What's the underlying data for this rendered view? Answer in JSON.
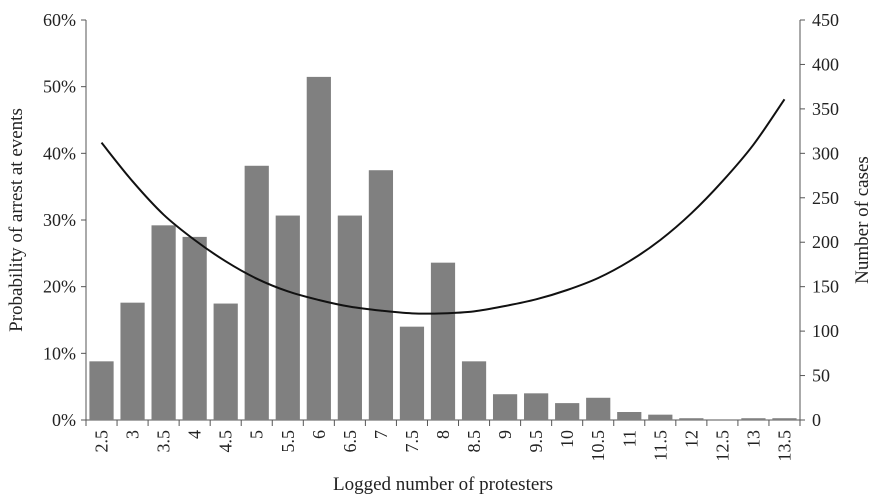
{
  "chart_data": {
    "type": "bar",
    "xlabel": "Logged number of protesters",
    "ylabel_left": "Probability of arrest at events",
    "ylabel_right": "Number of cases",
    "categories": [
      "2.5",
      "3",
      "3.5",
      "4",
      "4.5",
      "5",
      "5.5",
      "6",
      "6.5",
      "7",
      "7.5",
      "8",
      "8.5",
      "9",
      "9.5",
      "10",
      "10.5",
      "11",
      "11.5",
      "12",
      "12.5",
      "13",
      "13.5"
    ],
    "left_ticks": [
      "0%",
      "10%",
      "20%",
      "30%",
      "40%",
      "50%",
      "60%"
    ],
    "right_ticks": [
      "0",
      "50",
      "100",
      "150",
      "200",
      "250",
      "300",
      "350",
      "400",
      "450"
    ],
    "ylim_left": [
      0,
      0.6
    ],
    "ylim_right": [
      0,
      450
    ],
    "bars": {
      "name": "Number of cases",
      "axis": "right",
      "values": [
        66,
        132,
        219,
        206,
        131,
        286,
        230,
        386,
        230,
        281,
        105,
        177,
        66,
        29,
        30,
        19,
        25,
        9,
        6,
        2,
        0,
        2,
        2
      ]
    },
    "curve": {
      "name": "Probability of arrest at events",
      "axis": "left",
      "x": [
        2.5,
        3,
        3.5,
        4,
        4.5,
        5,
        5.5,
        6,
        6.5,
        7,
        7.5,
        8,
        8.5,
        9,
        9.5,
        10,
        10.5,
        11,
        11.5,
        12,
        12.5,
        13,
        13.5
      ],
      "values": [
        0.416,
        0.358,
        0.308,
        0.27,
        0.238,
        0.212,
        0.193,
        0.18,
        0.17,
        0.164,
        0.16,
        0.16,
        0.163,
        0.171,
        0.181,
        0.195,
        0.213,
        0.238,
        0.27,
        0.31,
        0.358,
        0.413,
        0.481
      ]
    },
    "grid": false,
    "legend": "none"
  }
}
